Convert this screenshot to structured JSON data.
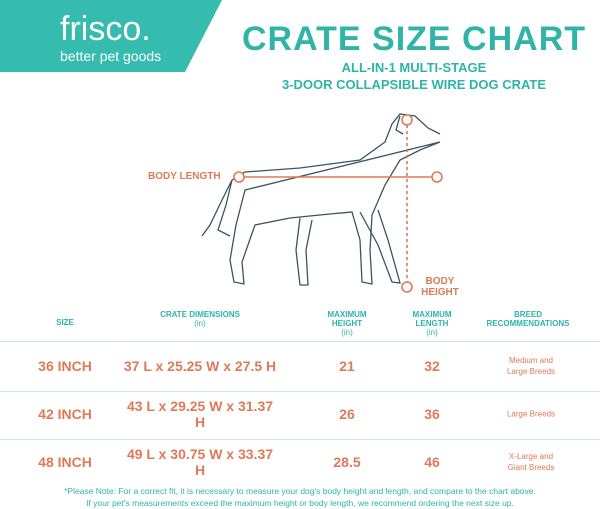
{
  "header": {
    "brand": "frisco.",
    "tagline": "better pet goods",
    "title": "CRATE SIZE CHART",
    "subtitle_lines": [
      "ALL-IN-1 MULTI-STAGE",
      "3-DOOR COLLAPSIBLE WIRE DOG CRATE"
    ]
  },
  "diagram": {
    "length_label": "BODY LENGTH",
    "height_label": "BODY HEIGHT"
  },
  "table": {
    "headers": [
      {
        "label": "SIZE"
      },
      {
        "label": "CRATE DIMENSIONS",
        "unit": "(in)"
      },
      {
        "label": "MAXIMUM HEIGHT",
        "unit": "(in)"
      },
      {
        "label": "MAXIMUM LENGTH",
        "unit": "(in)"
      },
      {
        "label": "BREED RECOMMENDATIONS"
      }
    ],
    "rows": [
      [
        "36 INCH",
        "37 L x 25.25 W x 27.5 H",
        21,
        32,
        "Medium and Large Breeds"
      ],
      [
        "42 INCH",
        "43 L x 29.25 W x 31.37 H",
        26,
        36,
        "Large Breeds"
      ],
      [
        "48 INCH",
        "49 L x 30.75 W x 33.37 H",
        28.5,
        46,
        "X-Large and Giant Breeds"
      ]
    ]
  },
  "footnote": [
    "*Please Note: For a correct fit, it is necessary to measure your dog's body height and length, and compare to the chart above.",
    "If your pet's measurements exceed the maximum height or body length, we recommend ordering the next size up."
  ]
}
